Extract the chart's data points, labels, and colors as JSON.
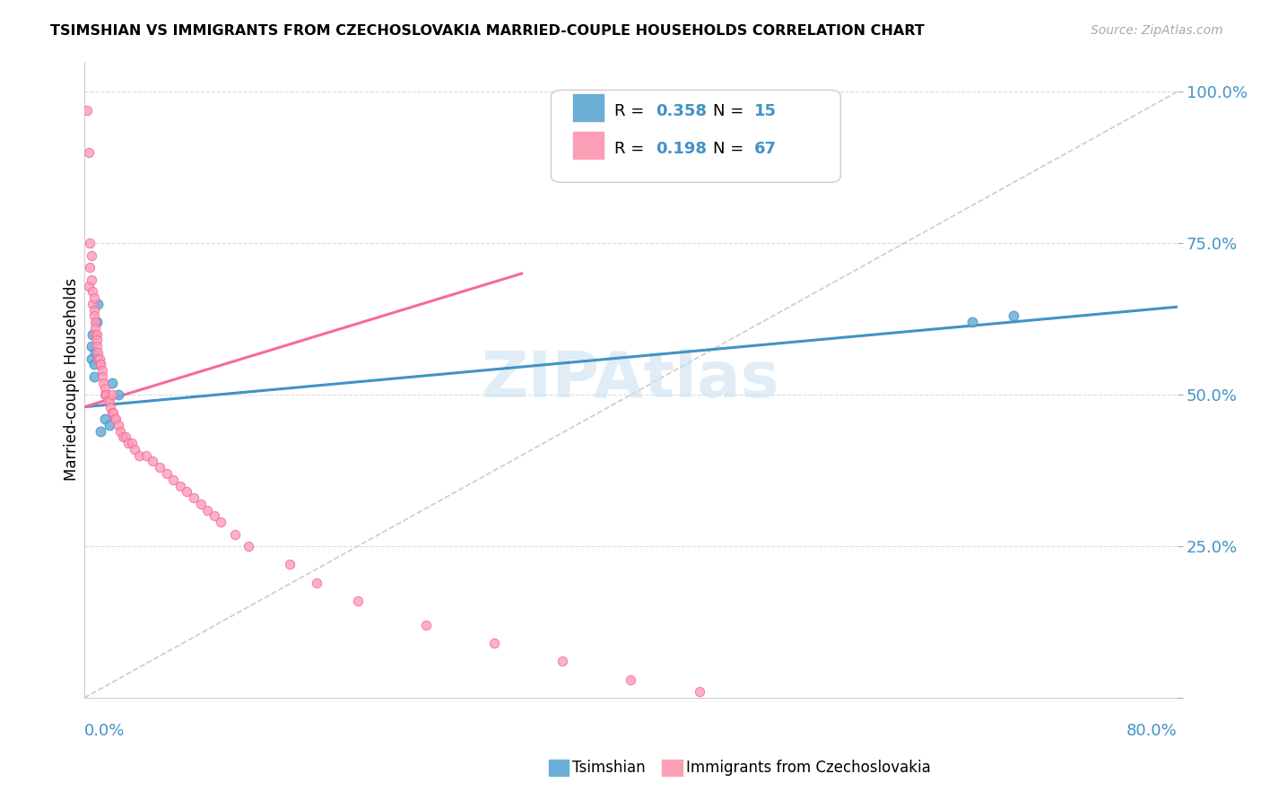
{
  "title": "TSIMSHIAN VS IMMIGRANTS FROM CZECHOSLOVAKIA MARRIED-COUPLE HOUSEHOLDS CORRELATION CHART",
  "source": "Source: ZipAtlas.com",
  "ylabel": "Married-couple Households",
  "xlim": [
    0.0,
    0.8
  ],
  "ylim": [
    0.0,
    1.05
  ],
  "watermark": "ZIPAtlas",
  "blue_color": "#6baed6",
  "pink_color": "#fa9fb5",
  "trend_blue_color": "#4292c6",
  "trend_pink_color": "#f768a1",
  "label1": "Tsimshian",
  "label2": "Immigrants from Czechoslovakia",
  "tsimshian_x": [
    0.005,
    0.005,
    0.006,
    0.007,
    0.007,
    0.008,
    0.009,
    0.01,
    0.012,
    0.015,
    0.018,
    0.02,
    0.025,
    0.65,
    0.68
  ],
  "tsimshian_y": [
    0.58,
    0.56,
    0.6,
    0.55,
    0.53,
    0.57,
    0.62,
    0.65,
    0.44,
    0.46,
    0.45,
    0.52,
    0.5,
    0.62,
    0.63
  ],
  "czech_x": [
    0.002,
    0.003,
    0.003,
    0.004,
    0.004,
    0.005,
    0.005,
    0.006,
    0.006,
    0.007,
    0.007,
    0.007,
    0.008,
    0.008,
    0.008,
    0.009,
    0.009,
    0.009,
    0.01,
    0.01,
    0.011,
    0.012,
    0.012,
    0.013,
    0.013,
    0.014,
    0.015,
    0.015,
    0.016,
    0.017,
    0.018,
    0.019,
    0.02,
    0.02,
    0.021,
    0.022,
    0.023,
    0.025,
    0.026,
    0.028,
    0.03,
    0.032,
    0.035,
    0.037,
    0.04,
    0.045,
    0.05,
    0.055,
    0.06,
    0.065,
    0.07,
    0.075,
    0.08,
    0.085,
    0.09,
    0.095,
    0.1,
    0.11,
    0.12,
    0.15,
    0.17,
    0.2,
    0.25,
    0.3,
    0.35,
    0.4,
    0.45
  ],
  "czech_y": [
    0.97,
    0.9,
    0.68,
    0.75,
    0.71,
    0.73,
    0.69,
    0.67,
    0.65,
    0.66,
    0.64,
    0.63,
    0.62,
    0.61,
    0.6,
    0.6,
    0.59,
    0.58,
    0.57,
    0.56,
    0.56,
    0.55,
    0.55,
    0.54,
    0.53,
    0.52,
    0.51,
    0.5,
    0.5,
    0.49,
    0.49,
    0.48,
    0.47,
    0.5,
    0.47,
    0.46,
    0.46,
    0.45,
    0.44,
    0.43,
    0.43,
    0.42,
    0.42,
    0.41,
    0.4,
    0.4,
    0.39,
    0.38,
    0.37,
    0.36,
    0.35,
    0.34,
    0.33,
    0.32,
    0.31,
    0.3,
    0.29,
    0.27,
    0.25,
    0.22,
    0.19,
    0.16,
    0.12,
    0.09,
    0.06,
    0.03,
    0.01
  ],
  "blue_line_x": [
    0.0,
    0.8
  ],
  "blue_line_y": [
    0.48,
    0.645
  ],
  "pink_line_x": [
    0.0,
    0.32
  ],
  "pink_line_y": [
    0.48,
    0.7
  ],
  "diag_line_x": [
    0.0,
    0.8
  ],
  "diag_line_y": [
    0.0,
    1.0
  ]
}
